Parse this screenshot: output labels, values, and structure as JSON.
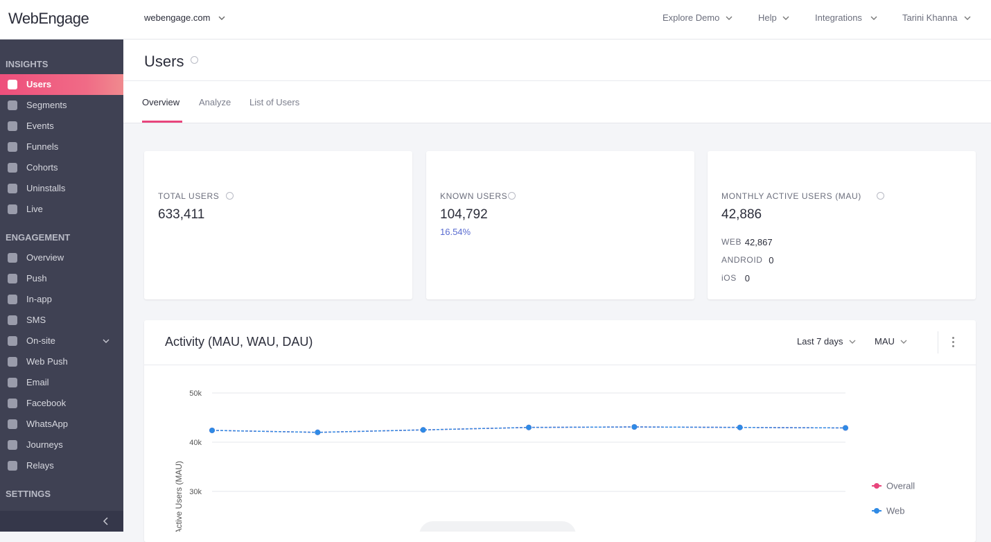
{
  "header": {
    "logo": "WebEngage",
    "account": "webengage.com",
    "menu": [
      "Explore Demo",
      "Help",
      "Integrations",
      "Tarini Khanna"
    ]
  },
  "sidebar": {
    "sections": [
      {
        "title": "INSIGHTS",
        "items": [
          "Users",
          "Segments",
          "Events",
          "Funnels",
          "Cohorts",
          "Uninstalls",
          "Live"
        ]
      },
      {
        "title": "ENGAGEMENT",
        "items": [
          "Overview",
          "Push",
          "In-app",
          "SMS",
          "On-site",
          "Web Push",
          "Email",
          "Facebook",
          "WhatsApp",
          "Journeys",
          "Relays"
        ]
      },
      {
        "title": "SETTINGS",
        "items": []
      }
    ]
  },
  "page": {
    "title": "Users",
    "tabs": [
      "Overview",
      "Analyze",
      "List of Users"
    ]
  },
  "cards": [
    {
      "label": "TOTAL USERS",
      "value": "633,411"
    },
    {
      "label": "KNOWN USERS",
      "value": "104,792",
      "sub": "16.54%"
    },
    {
      "label": "MONTHLY ACTIVE USERS (MAU)",
      "value": "42,886",
      "breakdown": [
        {
          "label": "WEB",
          "value": "42,867"
        },
        {
          "label": "ANDROID",
          "value": "0"
        },
        {
          "label": "iOS",
          "value": "0"
        }
      ]
    }
  ],
  "activity": {
    "title": "Activity (MAU, WAU, DAU)",
    "filters": [
      "Last 7 days",
      "MAU"
    ]
  },
  "chart_data": {
    "type": "line",
    "y_label": "Active Users (MAU)",
    "categories": [
      null,
      null,
      null,
      null,
      null,
      null,
      null
    ],
    "series": [
      {
        "name": "Overall",
        "color": "#e8457c",
        "values": [
          42400,
          42000,
          42500,
          43000,
          43100,
          43000,
          42900
        ]
      },
      {
        "name": "Web",
        "color": "#2f8ae5",
        "values": [
          42400,
          42000,
          42500,
          43000,
          43100,
          43000,
          42900
        ]
      }
    ],
    "ylim": [
      0,
      50000
    ],
    "yticks": [
      {
        "value": 30000,
        "label": "30k"
      },
      {
        "value": 40000,
        "label": "40k"
      },
      {
        "value": 50000,
        "label": "50k"
      }
    ],
    "grid": true
  }
}
